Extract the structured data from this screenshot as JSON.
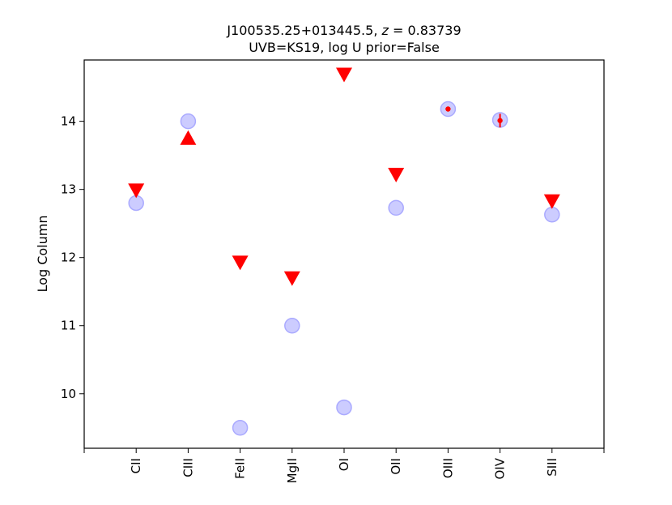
{
  "chart_data": {
    "type": "scatter",
    "title": "J100535.25+013445.5, z = 0.83739",
    "title_parts": {
      "prefix": "J100535.25+013445.5, ",
      "var": "z",
      "suffix": " = 0.83739"
    },
    "subtitle": "UVB=KS19, log U prior=False",
    "xlabel": "",
    "ylabel": "Log Column",
    "categories": [
      "CII",
      "CIII",
      "FeII",
      "MgII",
      "OI",
      "OII",
      "OIII",
      "OIV",
      "SIII"
    ],
    "xlim": [
      -1,
      9
    ],
    "ylim": [
      9.2,
      14.9
    ],
    "yticks": [
      10,
      11,
      12,
      13,
      14
    ],
    "grid": false,
    "model": {
      "values": [
        12.8,
        14.0,
        9.5,
        11.0,
        9.8,
        12.73,
        14.18,
        14.02,
        12.63
      ],
      "color": "#aaaaff"
    },
    "detections": [
      {
        "category": "OIII",
        "value": 14.18,
        "err": 0.02
      },
      {
        "category": "OIV",
        "value": 14.01,
        "err": 0.1
      }
    ],
    "upper_limits": [
      {
        "category": "CII",
        "value": 12.98
      },
      {
        "category": "FeII",
        "value": 11.92
      },
      {
        "category": "MgII",
        "value": 11.69
      },
      {
        "category": "OI",
        "value": 14.68
      },
      {
        "category": "OII",
        "value": 13.21
      },
      {
        "category": "SIII",
        "value": 12.82
      }
    ],
    "lower_limits": [
      {
        "category": "CIII",
        "value": 13.76
      }
    ],
    "limit_color": "#ff0000"
  }
}
